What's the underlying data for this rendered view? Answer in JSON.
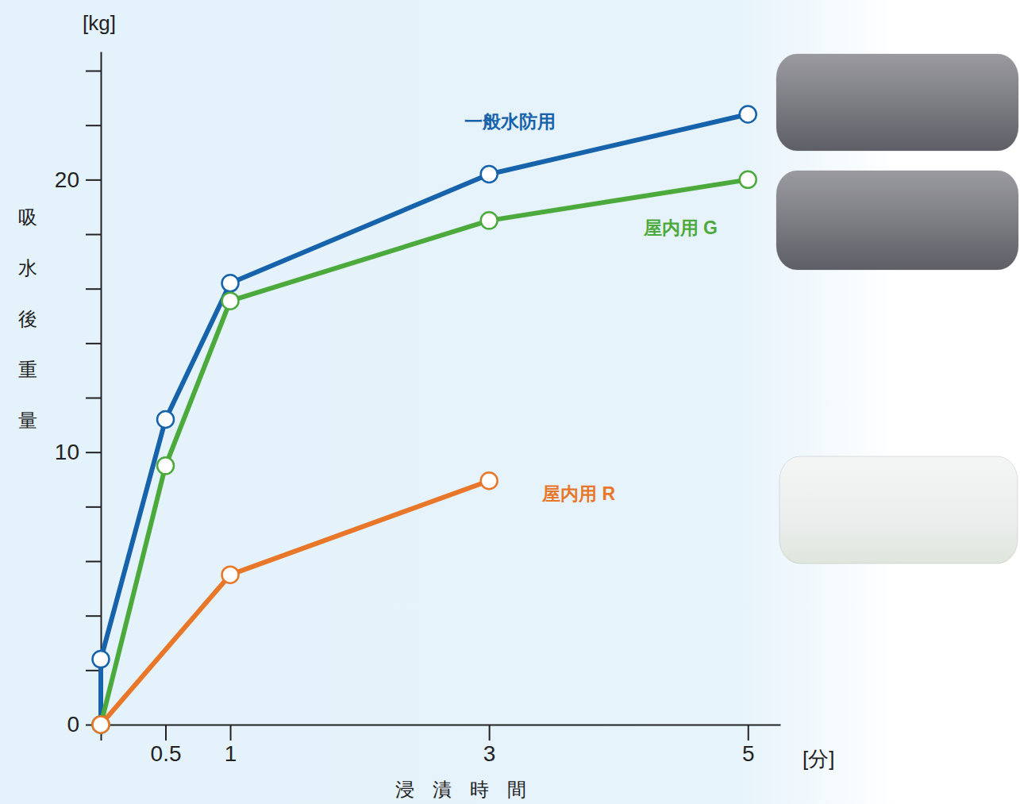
{
  "chart_data": {
    "type": "line",
    "xlabel": "浸漬時間",
    "ylabel": "吸水後重量",
    "xunit": "[分]",
    "yunit": "[kg]",
    "xlim": [
      0,
      5.25
    ],
    "ylim": [
      0,
      24.7
    ],
    "xticks": [
      {
        "value": 0,
        "label": null
      },
      0.5,
      1,
      3,
      5
    ],
    "yticks": [
      0,
      {
        "value": 2,
        "label": null
      },
      {
        "value": 4,
        "label": null
      },
      {
        "value": 6,
        "label": null
      },
      {
        "value": 8,
        "label": null
      },
      10,
      {
        "value": 12,
        "label": null
      },
      {
        "value": 14,
        "label": null
      },
      {
        "value": 16,
        "label": null
      },
      {
        "value": 18,
        "label": null
      },
      20,
      {
        "value": 22,
        "label": null
      },
      {
        "value": 24,
        "label": null
      }
    ],
    "grid": false,
    "marker": "circle",
    "series": [
      {
        "name": "一般水防用",
        "color": "#1763ab",
        "x": [
          0,
          0,
          0.5,
          1,
          3,
          5
        ],
        "values": [
          0,
          2.4,
          11.2,
          16.2,
          20.2,
          22.4
        ]
      },
      {
        "name": "屋内用 G",
        "color": "#4caa3c",
        "x": [
          0,
          0.5,
          1,
          3,
          5
        ],
        "values": [
          0,
          9.5,
          15.55,
          18.5,
          20.0
        ]
      },
      {
        "name": "屋内用 R",
        "color": "#e8772a",
        "x": [
          0,
          1,
          3
        ],
        "values": [
          0,
          5.5,
          8.95
        ]
      }
    ]
  }
}
